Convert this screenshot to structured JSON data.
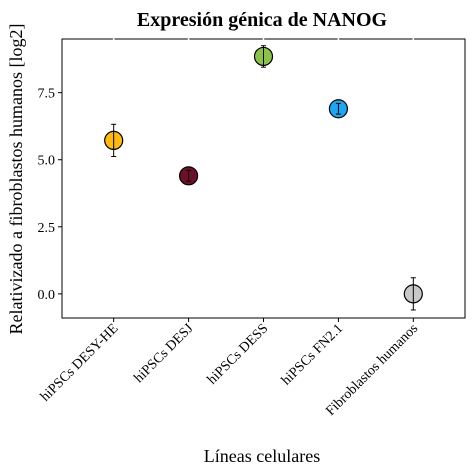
{
  "chart_data": {
    "type": "scatter",
    "title": "Expresión génica de NANOG",
    "xlabel": "Líneas celulares",
    "ylabel": "Relativizado a fibroblastos humanos [log2]",
    "categories": [
      "hiPSCs DESY-HE",
      "hiPSCs DESJ",
      "hiPSCs DESS",
      "hiPSCs FN2.1",
      "Fibroblastos humanos"
    ],
    "values": [
      5.72,
      4.4,
      8.85,
      6.9,
      0.0
    ],
    "errors": [
      0.6,
      0.2,
      0.4,
      0.2,
      0.6
    ],
    "colors": [
      "#FFB90F",
      "#6B0F2A",
      "#8BC34A",
      "#1EA7F0",
      "#C8C8C8"
    ],
    "yticks": [
      "0.0",
      "2.5",
      "5.0",
      "7.5"
    ],
    "ylim": [
      -0.9,
      9.5
    ],
    "grid": false,
    "legend": "none"
  }
}
